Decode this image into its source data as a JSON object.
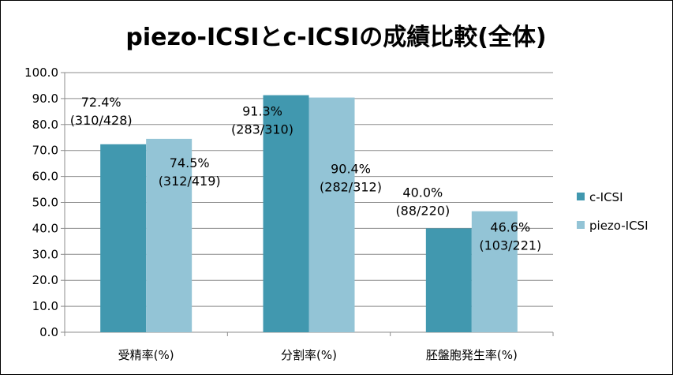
{
  "chart_data": {
    "type": "bar",
    "title": "piezo-ICSIとc-ICSIの成績比較(全体)",
    "xlabel": "",
    "ylabel": "",
    "categories": [
      "受精率(%)",
      "分割率(%)",
      "胚盤胞発生率(%)"
    ],
    "ylim": [
      0,
      100
    ],
    "yticks": [
      "100.0",
      "90.0",
      "80.0",
      "70.0",
      "60.0",
      "50.0",
      "40.0",
      "30.0",
      "20.0",
      "10.0",
      "0.0"
    ],
    "grid": true,
    "legend_position": "right",
    "series": [
      {
        "name": "c-ICSI",
        "color": "#4198AF",
        "values": [
          72.4,
          91.3,
          40.0
        ],
        "labels": [
          [
            "72.4%",
            "(310/428)"
          ],
          [
            "91.3%",
            "(283/310)"
          ],
          [
            "40.0%",
            "(88/220)"
          ]
        ]
      },
      {
        "name": "piezo-ICSI",
        "color": "#93C4D6",
        "values": [
          74.5,
          90.4,
          46.6
        ],
        "labels": [
          [
            "74.5%",
            "(312/419)"
          ],
          [
            "90.4%",
            "(282/312)"
          ],
          [
            "46.6%",
            "(103/221)"
          ]
        ]
      }
    ]
  }
}
